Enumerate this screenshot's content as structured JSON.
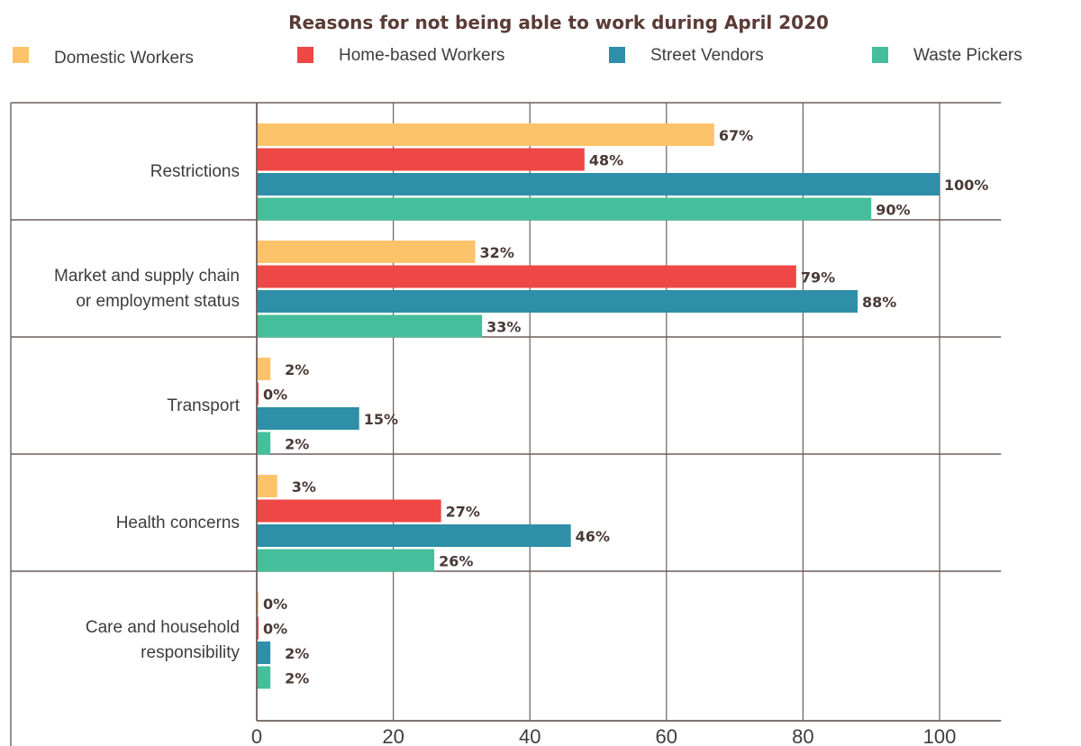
{
  "chart_data": {
    "type": "bar",
    "orientation": "horizontal",
    "title": "Reasons for not being able to work during April 2020",
    "categories": [
      [
        "Restrictions"
      ],
      [
        "Market and supply chain",
        "or employment status"
      ],
      [
        "Transport"
      ],
      [
        "Health concerns"
      ],
      [
        "Care and household",
        "responsibility"
      ]
    ],
    "series": [
      {
        "name": "Domestic Workers",
        "color": "#fdc36b",
        "values": [
          67,
          32,
          2,
          3,
          0
        ],
        "labels": [
          "67%",
          "32%",
          "2%",
          "3%",
          "0%"
        ]
      },
      {
        "name": "Home-based Workers",
        "color": "#ee4745",
        "values": [
          48,
          79,
          0,
          27,
          0
        ],
        "labels": [
          "48%",
          "79%",
          "0%",
          "27%",
          "0%"
        ]
      },
      {
        "name": "Street Vendors",
        "color": "#2f8fa8",
        "values": [
          100,
          88,
          15,
          46,
          2
        ],
        "labels": [
          "100%",
          "88%",
          "15%",
          "46%",
          "2%"
        ]
      },
      {
        "name": "Waste Pickers",
        "color": "#45bf9b",
        "values": [
          90,
          33,
          2,
          26,
          2
        ],
        "labels": [
          "90%",
          "33%",
          "2%",
          "26%",
          "2%"
        ]
      }
    ],
    "xlim": [
      0,
      109
    ],
    "xticks": [
      0,
      20,
      40,
      60,
      80,
      100
    ],
    "xtick_labels": [
      "0",
      "20",
      "40",
      "60",
      "80",
      "100"
    ],
    "grid": true,
    "legend_position": "top",
    "axis_color": "#6d5f5b",
    "grid_color": "#6d5f5b"
  }
}
